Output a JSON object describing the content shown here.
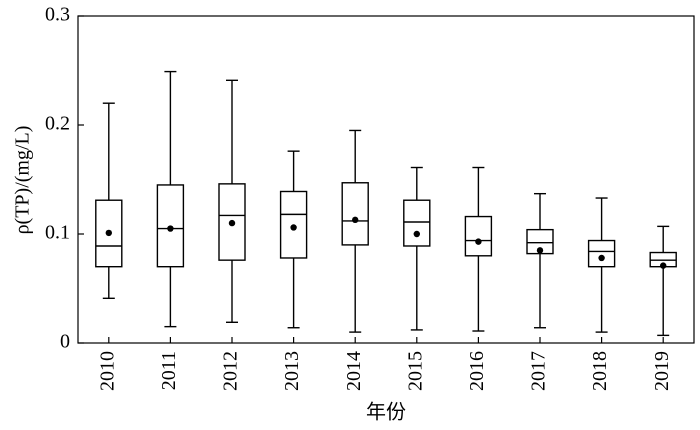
{
  "chart_data": {
    "type": "box",
    "y_label": "ρ(TP)/(mg/L)",
    "x_label": "年份",
    "categories": [
      "2010",
      "2011",
      "2012",
      "2013",
      "2014",
      "2015",
      "2016",
      "2017",
      "2018",
      "2019"
    ],
    "min": [
      0.041,
      0.015,
      0.019,
      0.014,
      0.01,
      0.012,
      0.011,
      0.014,
      0.01,
      0.007
    ],
    "q1": [
      0.07,
      0.07,
      0.076,
      0.078,
      0.09,
      0.089,
      0.08,
      0.082,
      0.07,
      0.07
    ],
    "median": [
      0.089,
      0.105,
      0.117,
      0.118,
      0.112,
      0.111,
      0.094,
      0.092,
      0.084,
      0.076
    ],
    "q3": [
      0.131,
      0.145,
      0.146,
      0.139,
      0.147,
      0.131,
      0.116,
      0.104,
      0.094,
      0.083
    ],
    "max": [
      0.22,
      0.249,
      0.241,
      0.176,
      0.195,
      0.161,
      0.161,
      0.137,
      0.133,
      0.107
    ],
    "mean": [
      0.101,
      0.105,
      0.11,
      0.106,
      0.113,
      0.1,
      0.093,
      0.085,
      0.078,
      0.071
    ],
    "color": "#000000",
    "ylim": [
      0,
      0.3
    ],
    "yticks": [
      0,
      0.1,
      0.2,
      0.3
    ],
    "grid": false
  }
}
